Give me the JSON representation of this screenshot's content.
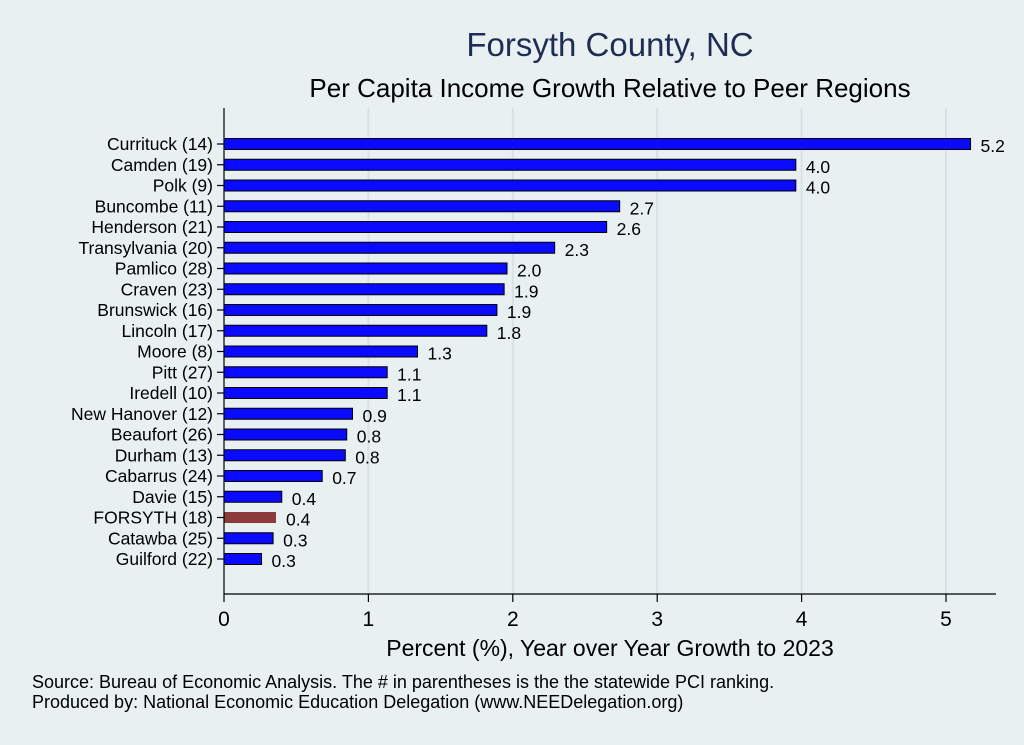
{
  "chart_data": {
    "type": "bar",
    "orientation": "horizontal",
    "title": "Forsyth County, NC",
    "subtitle": "Per Capita Income Growth Relative to Peer Regions",
    "xlabel": "Percent (%), Year over Year Growth to 2023",
    "ylabel": "",
    "xlim": [
      0,
      5.35
    ],
    "xticks": [
      0,
      1,
      2,
      3,
      4,
      5
    ],
    "grid": true,
    "legend": "none",
    "categories": [
      "Currituck (14)",
      "Camden (19)",
      "Polk  (9)",
      "Buncombe (11)",
      "Henderson (21)",
      "Transylvania (20)",
      "Pamlico (28)",
      "Craven (23)",
      "Brunswick (16)",
      "Lincoln (17)",
      "Moore  (8)",
      "Pitt (27)",
      "Iredell (10)",
      "New Hanover (12)",
      "Beaufort (26)",
      "Durham (13)",
      "Cabarrus (24)",
      "Davie (15)",
      "FORSYTH (18)",
      "Catawba (25)",
      "Guilford (22)"
    ],
    "values": [
      5.17,
      3.96,
      3.96,
      2.74,
      2.65,
      2.29,
      1.96,
      1.94,
      1.89,
      1.82,
      1.34,
      1.13,
      1.13,
      0.89,
      0.85,
      0.84,
      0.68,
      0.4,
      0.36,
      0.34,
      0.26
    ],
    "value_labels": [
      "5.2",
      "4.0",
      "4.0",
      "2.7",
      "2.6",
      "2.3",
      "2.0",
      "1.9",
      "1.9",
      "1.8",
      "1.3",
      "1.1",
      "1.1",
      "0.9",
      "0.8",
      "0.8",
      "0.7",
      "0.4",
      "0.4",
      "0.3",
      "0.3"
    ],
    "highlight": "FORSYTH (18)",
    "colors": {
      "bar": "#0a0aff",
      "highlight": "#8c3a3a",
      "grid": "#d6e2e6",
      "bar_outline": "#000000"
    }
  },
  "notes": {
    "source": "Source: Bureau of Economic Analysis. The # in parentheses is the the statewide PCI ranking.",
    "producer": "Produced by: National Economic Education Delegation (www.NEEDelegation.org)"
  }
}
